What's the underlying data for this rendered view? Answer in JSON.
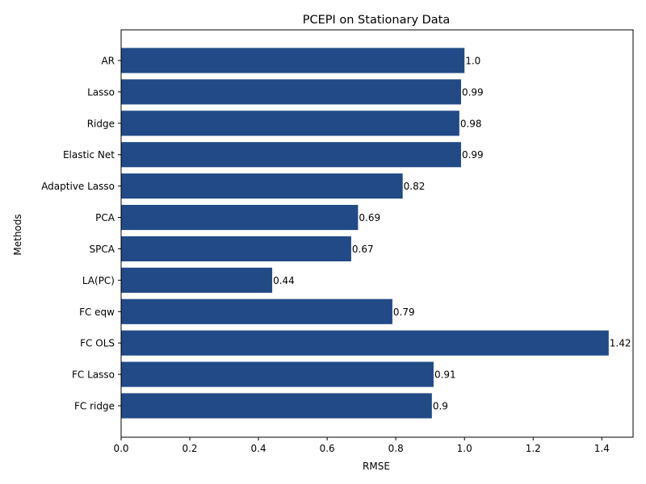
{
  "chart_data": {
    "type": "bar",
    "orientation": "horizontal",
    "title": "PCEPI on Stationary Data",
    "xlabel": "RMSE",
    "ylabel": "Methods",
    "categories": [
      "AR",
      "Lasso",
      "Ridge",
      "Elastic Net",
      "Adaptive Lasso",
      "PCA",
      "SPCA",
      "LA(PC)",
      "FC eqw",
      "FC OLS",
      "FC Lasso",
      "FC ridge"
    ],
    "values": [
      1.0,
      0.99,
      0.985,
      0.99,
      0.82,
      0.69,
      0.67,
      0.44,
      0.79,
      1.42,
      0.91,
      0.905
    ],
    "value_labels": [
      "1.0",
      "0.99",
      "0.98",
      "0.99",
      "0.82",
      "0.69",
      "0.67",
      "0.44",
      "0.79",
      "1.42",
      "0.91",
      "0.9"
    ],
    "xlim": [
      0,
      1.491
    ],
    "xticks": [
      0.0,
      0.2,
      0.4,
      0.6,
      0.8,
      1.0,
      1.2,
      1.4
    ],
    "xtick_labels": [
      "0.0",
      "0.2",
      "0.4",
      "0.6",
      "0.8",
      "1.0",
      "1.2",
      "1.4"
    ],
    "grid": false,
    "bar_color": "#214a87"
  }
}
